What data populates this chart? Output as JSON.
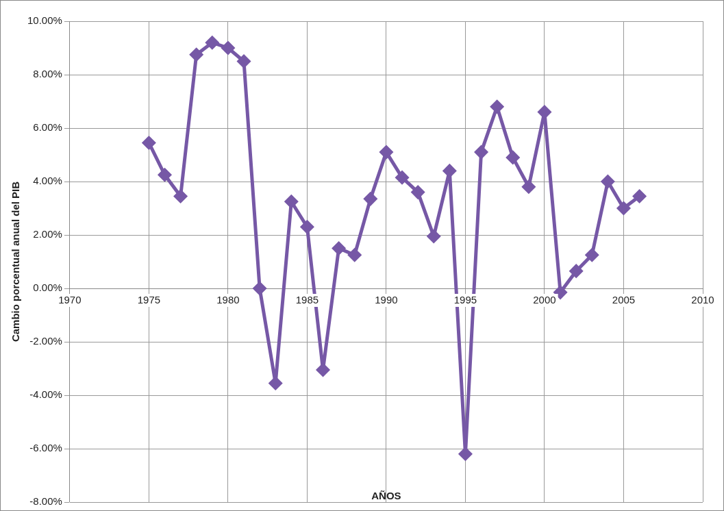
{
  "chart_data": {
    "type": "line",
    "xlabel": "AÑOS",
    "ylabel": "Cambio porcentual anual del PIB",
    "x": [
      1975,
      1976,
      1977,
      1978,
      1979,
      1980,
      1981,
      1982,
      1983,
      1984,
      1985,
      1986,
      1987,
      1988,
      1989,
      1990,
      1991,
      1992,
      1993,
      1994,
      1995,
      1996,
      1997,
      1998,
      1999,
      2000,
      2001,
      2002,
      2003,
      2004,
      2005,
      2006
    ],
    "series": [
      {
        "color": "#7658a6",
        "values": [
          5.45,
          4.25,
          3.45,
          8.75,
          9.2,
          9.0,
          8.5,
          0.0,
          -3.55,
          3.25,
          2.3,
          -3.05,
          1.5,
          1.25,
          3.35,
          5.1,
          4.15,
          3.6,
          1.95,
          4.4,
          -6.2,
          5.1,
          6.8,
          4.9,
          3.8,
          6.6,
          -0.15,
          0.65,
          1.25,
          4.0,
          3.0,
          3.45
        ]
      }
    ],
    "xlim": [
      1970,
      2010
    ],
    "xticks": [
      1970,
      1975,
      1980,
      1985,
      1990,
      1995,
      2000,
      2005,
      2010
    ],
    "ylim": [
      -8,
      10
    ],
    "yticks": [
      {
        "value": -8,
        "label": "-8.00%"
      },
      {
        "value": -6,
        "label": "-6.00%"
      },
      {
        "value": -4,
        "label": "-4.00%"
      },
      {
        "value": -2,
        "label": "-2.00%"
      },
      {
        "value": 0,
        "label": "0.00%"
      },
      {
        "value": 2,
        "label": "2.00%"
      },
      {
        "value": 4,
        "label": "4.00%"
      },
      {
        "value": 6,
        "label": "6.00%"
      },
      {
        "value": 8,
        "label": "8.00%"
      },
      {
        "value": 10,
        "label": "10.00%"
      }
    ],
    "grid": true,
    "legend": false,
    "marker": "diamond",
    "line_style": "solid"
  }
}
